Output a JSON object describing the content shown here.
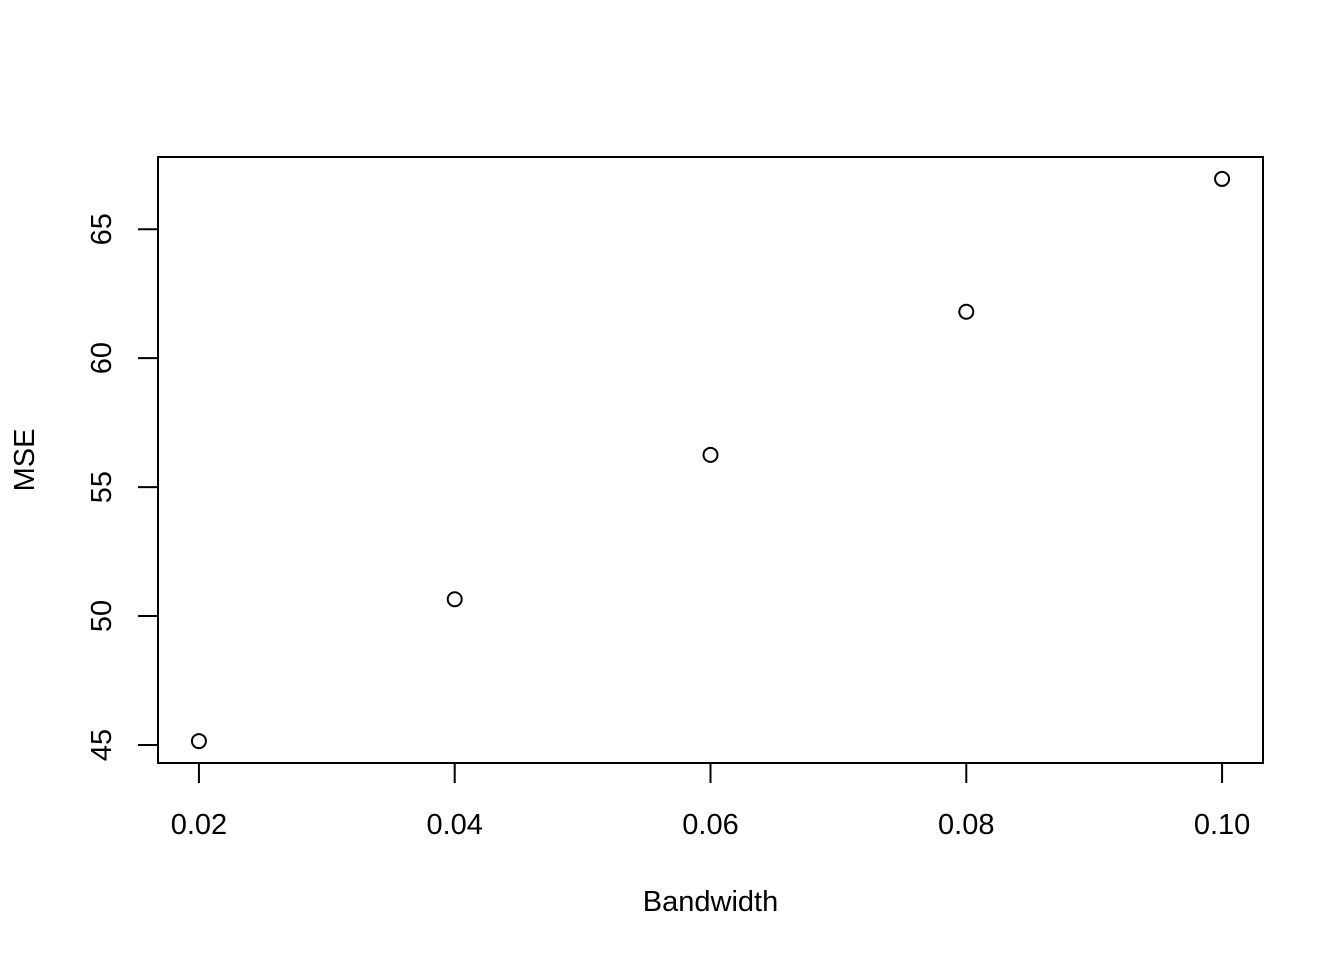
{
  "chart_data": {
    "type": "scatter",
    "title": "",
    "xlabel": "Bandwidth",
    "ylabel": "MSE",
    "x": [
      0.02,
      0.04,
      0.06,
      0.08,
      0.1
    ],
    "y": [
      45.15,
      50.65,
      56.25,
      61.8,
      66.95
    ],
    "xlim": [
      0.0168,
      0.1032
    ],
    "ylim": [
      44.3,
      67.8
    ],
    "x_ticks": [
      0.02,
      0.04,
      0.06,
      0.08,
      0.1
    ],
    "x_tick_labels": [
      "0.02",
      "0.04",
      "0.06",
      "0.08",
      "0.10"
    ],
    "y_ticks": [
      45,
      50,
      55,
      60,
      65
    ],
    "y_tick_labels": [
      "45",
      "50",
      "55",
      "60",
      "65"
    ],
    "grid": false,
    "legend": "none",
    "point_style": "open-circle",
    "colors": {
      "axis": "#000000",
      "points": "#000000",
      "background": "#ffffff"
    }
  }
}
